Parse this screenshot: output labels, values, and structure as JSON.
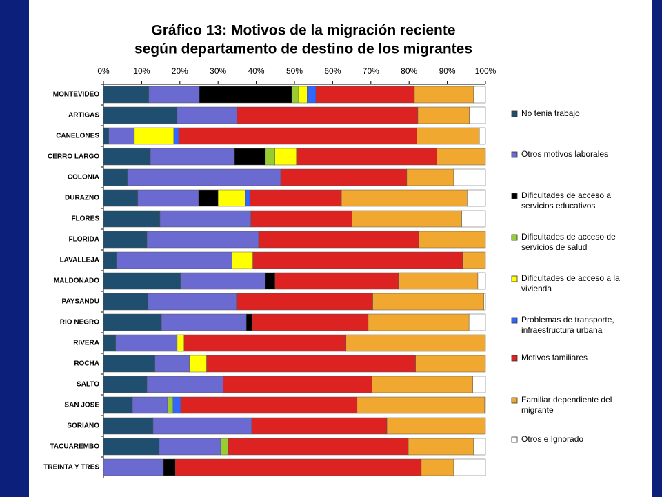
{
  "chart_data": {
    "type": "stacked_bar_horizontal",
    "title": "Gráfico  13: Motivos de la migración reciente",
    "subtitle": "según departamento de  destino de los migrantes",
    "categories": [
      "MONTEVIDEO",
      "ARTIGAS",
      "CANELONES",
      "CERRO LARGO",
      "COLONIA",
      "DURAZNO",
      "FLORES",
      "FLORIDA",
      "LAVALLEJA",
      "MALDONADO",
      "PAYSANDU",
      "RIO NEGRO",
      "RIVERA",
      "ROCHA",
      "SALTO",
      "SAN JOSE",
      "SORIANO",
      "TACUAREMBO",
      "TREINTA Y TRES"
    ],
    "xlim": [
      0,
      100
    ],
    "xticks": [
      {
        "value": 0,
        "label": "0%"
      },
      {
        "value": 10,
        "label": "10%"
      },
      {
        "value": 20,
        "label": "20%"
      },
      {
        "value": 30,
        "label": "30%"
      },
      {
        "value": 40,
        "label": "40%"
      },
      {
        "value": 50,
        "label": "50%"
      },
      {
        "value": 60,
        "label": "60%"
      },
      {
        "value": 70,
        "label": "70%"
      },
      {
        "value": 80,
        "label": "80%"
      },
      {
        "value": 90,
        "label": "90%"
      },
      {
        "value": 100,
        "label": "100%"
      }
    ],
    "series": [
      {
        "name": "No tenia trabajo",
        "color": "#1f4e6e",
        "values": [
          11.9,
          19.3,
          1.4,
          12.3,
          6.3,
          9.0,
          14.8,
          11.4,
          3.4,
          20.2,
          11.7,
          15.2,
          3.2,
          13.5,
          11.4,
          7.6,
          13.0,
          14.6,
          0
        ]
      },
      {
        "name": "Otros motivos laborales",
        "color": "#6a6ad0",
        "values": [
          13.2,
          15.7,
          6.7,
          22.0,
          40.1,
          15.9,
          23.8,
          29.2,
          30.3,
          22.2,
          23.1,
          22.2,
          16.1,
          9.0,
          19.9,
          9.2,
          25.8,
          16.1,
          15.7
        ]
      },
      {
        "name": "Dificultades de acceso a servicios educativos",
        "color": "#000000",
        "values": [
          24.2,
          0,
          0,
          8.1,
          0,
          5.1,
          0,
          0,
          0,
          2.5,
          0,
          1.6,
          0,
          0,
          0,
          0,
          0,
          0,
          3.1
        ]
      },
      {
        "name": "Dificultades de acceso de servicios de salud",
        "color": "#99cc33",
        "values": [
          1.8,
          0,
          0,
          2.5,
          0,
          0,
          0,
          0,
          0,
          0,
          0,
          0,
          0,
          0,
          0,
          1.4,
          0,
          2.0,
          0
        ]
      },
      {
        "name": "Dificultades de acceso a la vivienda",
        "color": "#ffff00",
        "values": [
          2.2,
          0,
          10.3,
          5.6,
          0,
          7.2,
          0,
          0,
          5.4,
          0,
          0,
          0,
          1.8,
          4.5,
          0,
          0,
          0,
          0,
          0
        ]
      },
      {
        "name": "Problemas de transporte, infraestructura urbana",
        "color": "#3366ff",
        "values": [
          2.3,
          0,
          1.3,
          0,
          0,
          1.1,
          0,
          0,
          0,
          0,
          0,
          0,
          0,
          0,
          0,
          2.0,
          0,
          0,
          0
        ]
      },
      {
        "name": "Motivos familiares",
        "color": "#dd2222",
        "values": [
          25.8,
          47.3,
          62.3,
          36.8,
          33.0,
          24.0,
          26.5,
          41.9,
          54.9,
          32.3,
          35.7,
          30.3,
          42.4,
          54.7,
          39.0,
          46.2,
          35.4,
          47.1,
          64.4
        ]
      },
      {
        "name": "Familiar dependiente del migrante",
        "color": "#f0a830",
        "values": [
          15.5,
          13.5,
          16.4,
          12.7,
          12.3,
          32.9,
          28.7,
          17.5,
          6.0,
          20.8,
          29.1,
          26.4,
          36.5,
          18.3,
          26.4,
          33.4,
          25.8,
          17.1,
          8.5
        ]
      },
      {
        "name": "Otros e Ignorado",
        "color": "#ffffff",
        "values": [
          3.1,
          4.2,
          1.6,
          0,
          8.3,
          4.8,
          6.2,
          0,
          0,
          2.0,
          0.4,
          4.3,
          0,
          0,
          3.3,
          0.2,
          0,
          3.1,
          8.3
        ]
      }
    ]
  }
}
